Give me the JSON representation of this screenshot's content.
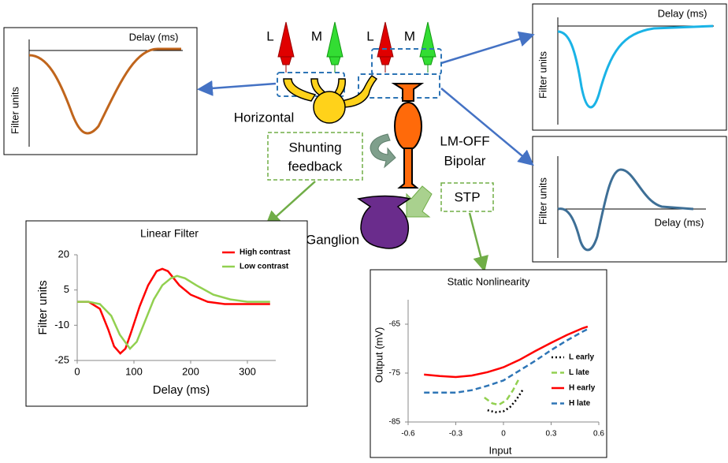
{
  "diagram": {
    "cone_labels": [
      "L",
      "M",
      "L",
      "M"
    ],
    "horizontal": "Horizontal",
    "bipolar": [
      "LM-OFF",
      "Bipolar"
    ],
    "shunting_feedback": [
      "Shunting",
      "feedback"
    ],
    "stp": "STP",
    "ganglion": "Ganglion",
    "insets": [
      {
        "x_label": "Delay (ms)",
        "y_label": "Filter units"
      },
      {
        "x_label": "Delay (ms)",
        "y_label": "Filter units"
      },
      {
        "x_label": "Delay (ms)",
        "y_label": "Filter units"
      }
    ]
  },
  "chart_data": [
    {
      "type": "line",
      "title": "Linear Filter",
      "x_label": "Delay (ms)",
      "y_label": "Filter units",
      "xlim": [
        0,
        350
      ],
      "ylim": [
        -25,
        20
      ],
      "xticks": [
        0,
        100,
        200,
        300
      ],
      "yticks": [
        -25,
        -10,
        5,
        20
      ],
      "legend": "top-right",
      "series": [
        {
          "name": "High contrast",
          "color": "#ff0000",
          "style": "solid",
          "x": [
            0,
            20,
            40,
            55,
            65,
            76,
            85,
            95,
            110,
            125,
            140,
            150,
            160,
            180,
            200,
            230,
            260,
            300,
            340
          ],
          "values": [
            0,
            0,
            -3,
            -12,
            -19,
            -22,
            -20,
            -13,
            -2,
            7,
            13,
            14,
            13,
            7,
            3,
            0,
            -1,
            -1,
            -1
          ]
        },
        {
          "name": "Low contrast",
          "color": "#92d050",
          "style": "solid",
          "x": [
            0,
            20,
            40,
            60,
            75,
            93,
            105,
            120,
            135,
            150,
            165,
            176,
            190,
            210,
            240,
            270,
            300,
            340
          ],
          "values": [
            0,
            0,
            -1,
            -6,
            -14,
            -20,
            -17,
            -8,
            1,
            7,
            10,
            11,
            10,
            7,
            3,
            1,
            0,
            0
          ]
        }
      ]
    },
    {
      "type": "line",
      "title": "Static Nonlinearity",
      "x_label": "Input",
      "y_label": "Output (mV)",
      "xlim": [
        -0.6,
        0.6
      ],
      "ylim": [
        -85,
        -60
      ],
      "xticks": [
        -0.6,
        -0.3,
        0,
        0.3,
        0.6
      ],
      "yticks": [
        -85,
        -75,
        -65
      ],
      "legend": "right",
      "series": [
        {
          "name": "L early",
          "color": "#000000",
          "style": "dotted",
          "x": [
            -0.1,
            -0.05,
            0,
            0.04,
            0.08,
            0.12
          ],
          "values": [
            -82.6,
            -83,
            -82.8,
            -82,
            -80.5,
            -78.5
          ]
        },
        {
          "name": "L late",
          "color": "#92d050",
          "style": "dashed",
          "x": [
            -0.12,
            -0.07,
            -0.03,
            0.02,
            0.06,
            0.1
          ],
          "values": [
            -80,
            -81.2,
            -81.5,
            -80.5,
            -78.5,
            -76
          ]
        },
        {
          "name": "H early",
          "color": "#ff0000",
          "style": "solid",
          "x": [
            -0.5,
            -0.4,
            -0.3,
            -0.2,
            -0.1,
            0,
            0.1,
            0.2,
            0.3,
            0.4,
            0.5,
            0.53
          ],
          "values": [
            -75.3,
            -75.6,
            -75.8,
            -75.5,
            -74.8,
            -73.8,
            -72.3,
            -70.5,
            -68.8,
            -67.2,
            -65.8,
            -65.5
          ]
        },
        {
          "name": "H late",
          "color": "#2e75b6",
          "style": "dashed",
          "x": [
            -0.5,
            -0.4,
            -0.3,
            -0.2,
            -0.1,
            0,
            0.1,
            0.2,
            0.3,
            0.4,
            0.5,
            0.53
          ],
          "values": [
            -79,
            -79,
            -79,
            -78.5,
            -77.6,
            -76.5,
            -74.5,
            -72.5,
            -70.3,
            -68.3,
            -66.5,
            -66
          ]
        }
      ]
    }
  ]
}
